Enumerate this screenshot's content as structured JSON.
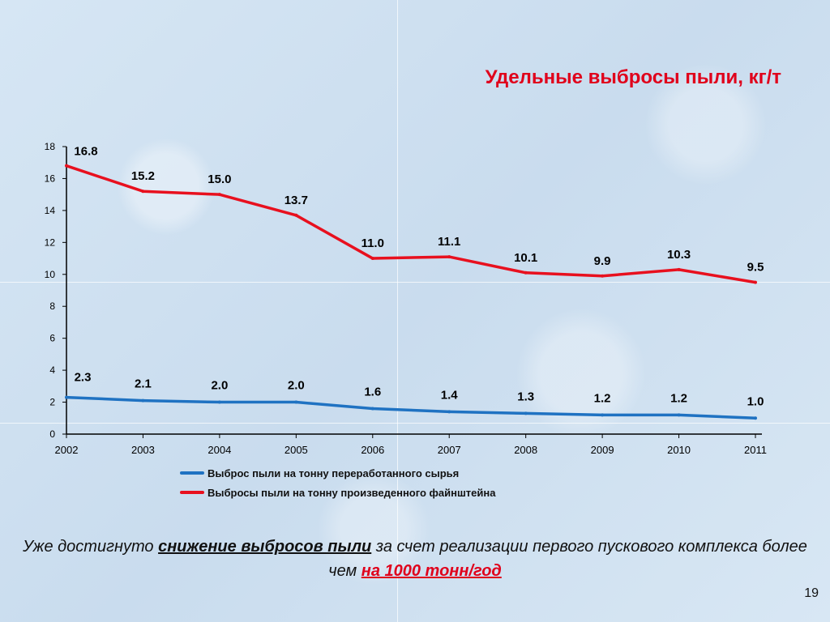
{
  "title": "Удельные выбросы пыли, кг/т",
  "chart_data": {
    "type": "line",
    "title": "Удельные выбросы пыли, кг/т",
    "categories": [
      "2002",
      "2003",
      "2004",
      "2005",
      "2006",
      "2007",
      "2008",
      "2009",
      "2010",
      "2011"
    ],
    "ylim": [
      0,
      18
    ],
    "yticks": [
      0,
      2,
      4,
      6,
      8,
      10,
      12,
      14,
      16,
      18
    ],
    "grid": false,
    "legend_position": "bottom",
    "series": [
      {
        "name": "Выброс пыли на тонну переработанного сырья",
        "color": "#1f72c2",
        "values": [
          2.3,
          2.1,
          2.0,
          2.0,
          1.6,
          1.4,
          1.3,
          1.2,
          1.2,
          1.0
        ],
        "labels": [
          "2.3",
          "2.1",
          "2.0",
          "2.0",
          "1.6",
          "1.4",
          "1.3",
          "1.2",
          "1.2",
          "1.0"
        ]
      },
      {
        "name": "Выбросы пыли на тонну произведенного файнштейна",
        "color": "#e8101e",
        "values": [
          16.8,
          15.2,
          15.0,
          13.7,
          11.0,
          11.1,
          10.1,
          9.9,
          10.3,
          9.5
        ],
        "labels": [
          "16.8",
          "15.2",
          "15.0",
          "13.7",
          "11.0",
          "11.1",
          "10.1",
          "9.9",
          "10.3",
          "9.5"
        ]
      }
    ]
  },
  "footer": {
    "part1": "Уже достигнуто ",
    "emphasis1": "снижение выбросов пыли",
    "part2": " за счет реализации первого пускового комплекса более чем ",
    "emphasis2": "на 1000 тонн/год"
  },
  "page_number": "19"
}
